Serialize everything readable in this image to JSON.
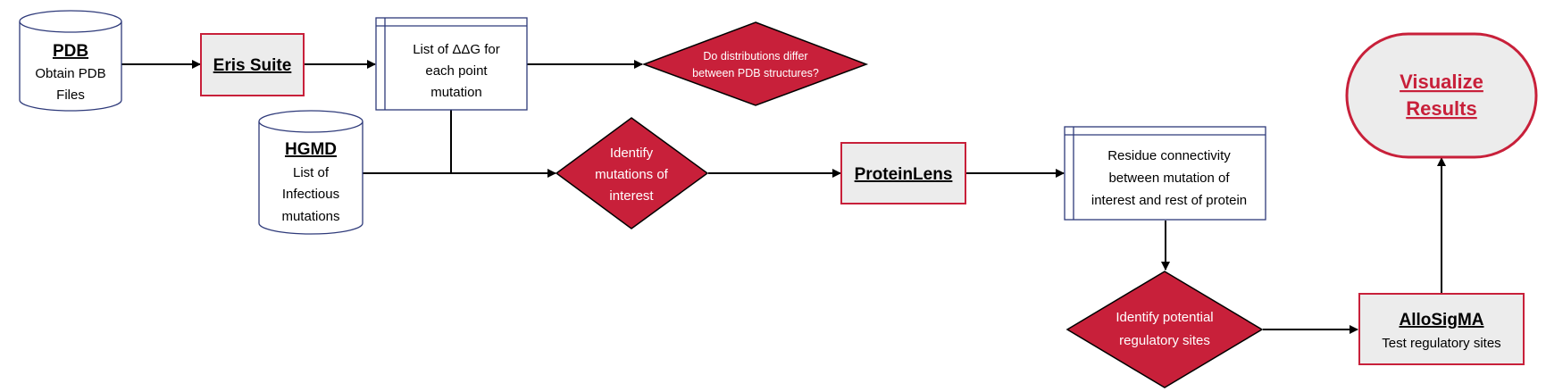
{
  "nodes": {
    "pdb": {
      "title": "PDB",
      "line1": "Obtain PDB",
      "line2": "Files"
    },
    "eris": {
      "title": "Eris Suite"
    },
    "ddg": {
      "line1": "List of ΔΔG for",
      "line2": "each point",
      "line3": "mutation"
    },
    "distributions": {
      "line1": "Do distributions differ",
      "line2": "between PDB structures?"
    },
    "hgmd": {
      "title": "HGMD",
      "line1": "List of",
      "line2": "Infectious",
      "line3": "mutations"
    },
    "identify_mutations": {
      "line1": "Identify",
      "line2": "mutations of",
      "line3": "interest"
    },
    "proteinlens": {
      "title": "ProteinLens"
    },
    "connectivity": {
      "line1": "Residue connectivity",
      "line2": "between mutation of",
      "line3": "interest and rest of protein"
    },
    "regulatory": {
      "line1": "Identify potential",
      "line2": "regulatory sites"
    },
    "allosigma": {
      "title": "AlloSigMA",
      "line1": "Test regulatory sites"
    },
    "visualize": {
      "line1": "Visualize",
      "line2": "Results"
    }
  },
  "colors": {
    "accent_red": "#c8203a",
    "decision_fill": "#c8203a",
    "tool_box_fill": "#ececec",
    "doc_border": "#2e3a7a",
    "line": "#000000"
  }
}
